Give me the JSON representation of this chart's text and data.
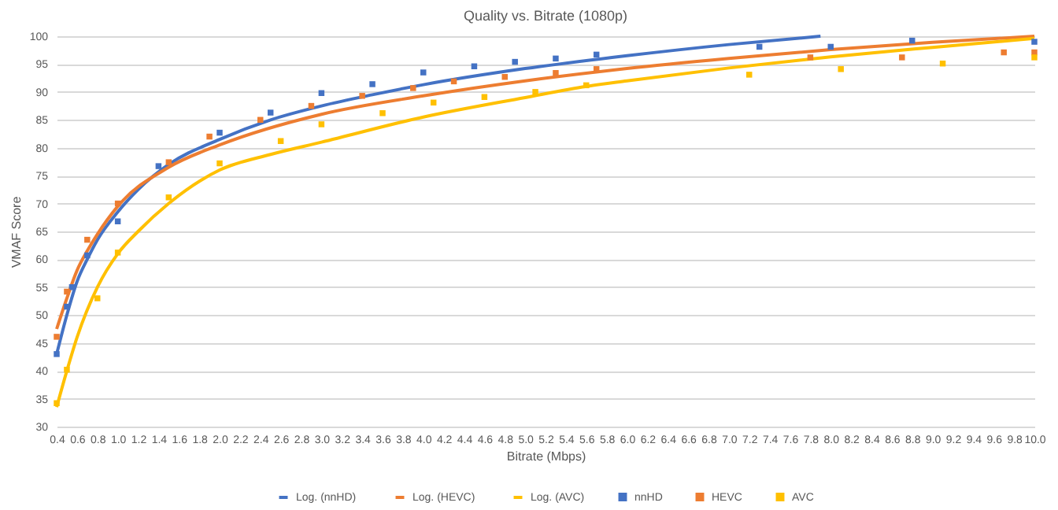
{
  "chart_data": {
    "type": "scatter",
    "title": "Quality vs. Bitrate (1080p)",
    "xlabel": "Bitrate (Mbps)",
    "ylabel": "VMAF Score",
    "xlim": [
      0.4,
      10.0
    ],
    "ylim": [
      30,
      100
    ],
    "xticks": [
      0.4,
      0.6,
      0.8,
      {
        "value": 1,
        "label": "1.0"
      },
      1.2,
      1.4,
      1.6,
      1.8,
      {
        "value": 2,
        "label": "2.0"
      },
      2.2,
      2.4,
      2.6,
      2.8,
      {
        "value": 3,
        "label": "3.0"
      },
      3.2,
      3.4,
      3.6,
      3.8,
      {
        "value": 4,
        "label": "4.0"
      },
      4.2,
      4.4,
      4.6,
      4.8,
      {
        "value": 5,
        "label": "5.0"
      },
      5.2,
      5.4,
      5.6,
      5.8,
      {
        "value": 6,
        "label": "6.0"
      },
      6.2,
      6.4,
      6.6,
      6.8,
      {
        "value": 7,
        "label": "7.0"
      },
      7.2,
      7.4,
      7.6,
      7.8,
      {
        "value": 8,
        "label": "8.0"
      },
      8.2,
      8.4,
      8.6,
      8.8,
      {
        "value": 9,
        "label": "9.0"
      },
      9.2,
      9.4,
      9.6,
      9.8,
      {
        "value": 10,
        "label": "10.0"
      }
    ],
    "yticks": [
      30,
      35,
      40,
      45,
      50,
      55,
      60,
      65,
      70,
      75,
      80,
      85,
      90,
      95,
      100
    ],
    "grid": "y",
    "legend": "bottom",
    "series": [
      {
        "name": "nnHD",
        "type": "scatter",
        "marker": "square",
        "color": "#4472c4",
        "x": [
          0.4,
          0.5,
          0.55,
          0.7,
          1.0,
          1.4,
          2.0,
          2.5,
          3.0,
          3.5,
          4.0,
          4.5,
          4.9,
          5.3,
          5.7,
          7.3,
          8.0,
          8.8,
          10.0
        ],
        "values": [
          43,
          51.5,
          55,
          60.7,
          66.8,
          76.7,
          82.7,
          86.3,
          89.8,
          91.4,
          93.5,
          94.6,
          95.4,
          96,
          96.7,
          98.1,
          98.1,
          99.2,
          99
        ]
      },
      {
        "name": "HEVC",
        "type": "scatter",
        "marker": "square",
        "color": "#ed7d31",
        "x": [
          0.4,
          0.5,
          0.7,
          1.0,
          1.5,
          1.9,
          2.4,
          2.9,
          3.4,
          3.9,
          4.3,
          4.8,
          5.3,
          5.7,
          7.8,
          8.7,
          9.7,
          10.0
        ],
        "values": [
          46.1,
          54.2,
          63.5,
          70,
          77.4,
          82,
          85,
          87.5,
          89.3,
          90.7,
          91.9,
          92.7,
          93.4,
          94.1,
          96.2,
          96.2,
          97.1,
          97.1
        ]
      },
      {
        "name": "AVC",
        "type": "scatter",
        "marker": "square",
        "color": "#ffc000",
        "x": [
          0.4,
          0.5,
          0.8,
          1.0,
          1.5,
          2.0,
          2.6,
          3.0,
          3.6,
          4.1,
          4.6,
          5.1,
          5.6,
          7.2,
          8.1,
          9.1,
          10.0
        ],
        "values": [
          34.2,
          40.2,
          53,
          61.2,
          71.1,
          77.2,
          81.2,
          84.2,
          86.2,
          88.1,
          89.1,
          90,
          91.2,
          93.1,
          94.1,
          95.1,
          96.2
        ]
      },
      {
        "name": "Log. (nnHD)",
        "type": "line",
        "line_style": "solid",
        "color": "#4472c4",
        "x": [
          0.4,
          0.5,
          0.6,
          0.7,
          0.8,
          1.0,
          1.2,
          1.5,
          2.0,
          2.5,
          3.0,
          3.5,
          4.0,
          5.0,
          6.0,
          7.0,
          7.9
        ],
        "values": [
          43,
          50,
          56,
          60,
          63.5,
          68.5,
          72.5,
          77,
          81.5,
          85,
          87.5,
          89.5,
          91.3,
          94.2,
          96.5,
          98.5,
          100
        ]
      },
      {
        "name": "Log. (HEVC)",
        "type": "line",
        "line_style": "solid",
        "color": "#ed7d31",
        "x": [
          0.4,
          0.5,
          0.6,
          0.7,
          0.8,
          1.0,
          1.5,
          2.0,
          3.0,
          4.0,
          5.0,
          6.0,
          7.0,
          8.0,
          9.0,
          10.0
        ],
        "values": [
          47.5,
          53,
          58,
          61.5,
          64.5,
          69.5,
          76.5,
          80.5,
          86,
          89.3,
          92,
          94.2,
          96,
          97.6,
          98.9,
          100
        ]
      },
      {
        "name": "Log. (AVC)",
        "type": "line",
        "line_style": "solid",
        "color": "#ffc000",
        "x": [
          0.4,
          0.5,
          0.6,
          0.8,
          1.0,
          1.2,
          1.5,
          2.0,
          2.5,
          3.0,
          4.0,
          5.0,
          5.6,
          6.0,
          7.0,
          8.0,
          9.0,
          10.0
        ],
        "values": [
          33.5,
          40,
          46,
          55,
          61,
          65,
          70,
          76,
          78.8,
          81,
          85.5,
          89,
          91,
          92,
          94.3,
          96.3,
          98,
          99.6
        ]
      }
    ]
  }
}
